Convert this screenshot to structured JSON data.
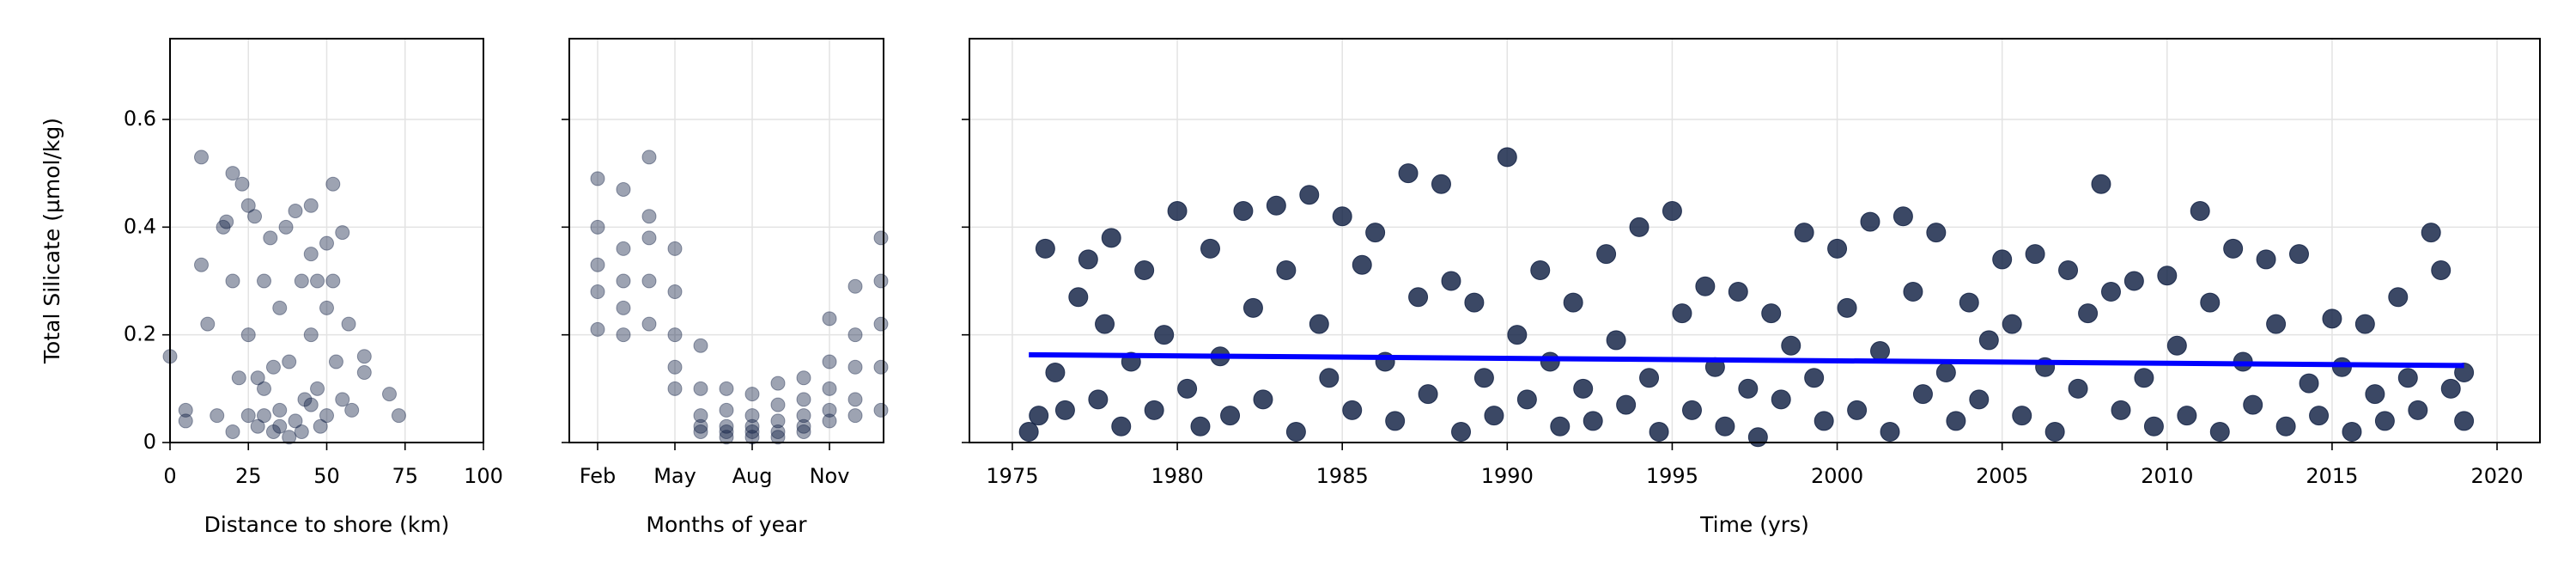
{
  "chart_data": [
    {
      "type": "scatter",
      "xlabel": "Distance to shore (km)",
      "ylabel": "Total Silicate (µmol/kg)",
      "xlim": [
        0,
        100
      ],
      "xticks": [
        0,
        25,
        50,
        75,
        100
      ],
      "ylim": [
        0,
        0.75
      ],
      "yticks": [
        0.0,
        0.2,
        0.4,
        0.6
      ],
      "grid": true,
      "series": [
        {
          "type": "scatter",
          "color": "#0a1a3f",
          "opacity": 0.4,
          "x": [
            0,
            5,
            5,
            10,
            10,
            12,
            15,
            17,
            18,
            20,
            20,
            20,
            22,
            23,
            25,
            25,
            25,
            27,
            28,
            30,
            30,
            32,
            33,
            35,
            35,
            37,
            38,
            40,
            40,
            42,
            43,
            45,
            45,
            45,
            47,
            47,
            48,
            50,
            50,
            50,
            52,
            52,
            53,
            55,
            55,
            57,
            58,
            62,
            62,
            70,
            73,
            35,
            38,
            30,
            42,
            28,
            45,
            33
          ],
          "values": [
            0.16,
            0.06,
            0.04,
            0.53,
            0.33,
            0.22,
            0.05,
            0.4,
            0.41,
            0.5,
            0.3,
            0.02,
            0.12,
            0.48,
            0.44,
            0.2,
            0.05,
            0.42,
            0.03,
            0.3,
            0.1,
            0.38,
            0.02,
            0.25,
            0.06,
            0.4,
            0.15,
            0.43,
            0.04,
            0.3,
            0.08,
            0.44,
            0.35,
            0.2,
            0.1,
            0.3,
            0.03,
            0.37,
            0.25,
            0.05,
            0.48,
            0.3,
            0.15,
            0.39,
            0.08,
            0.22,
            0.06,
            0.16,
            0.13,
            0.09,
            0.05,
            0.03,
            0.01,
            0.05,
            0.02,
            0.12,
            0.07,
            0.14
          ]
        }
      ]
    },
    {
      "type": "scatter",
      "xlabel": "Months of year",
      "xlim": [
        0.9,
        13.1
      ],
      "xticks": [
        {
          "value": 2,
          "label": "Feb"
        },
        {
          "value": 5,
          "label": "May"
        },
        {
          "value": 8,
          "label": "Aug"
        },
        {
          "value": 11,
          "label": "Nov"
        }
      ],
      "ylim": [
        0,
        0.75
      ],
      "sharey": true,
      "grid": true,
      "series": [
        {
          "type": "scatter",
          "color": "#0a1a3f",
          "opacity": 0.4,
          "x": [
            2,
            2,
            2,
            2,
            2,
            3,
            3,
            3,
            3,
            3,
            4,
            4,
            4,
            4,
            4,
            5,
            5,
            5,
            5,
            5,
            6,
            6,
            6,
            6,
            6,
            7,
            7,
            7,
            7,
            7,
            8,
            8,
            8,
            8,
            8,
            9,
            9,
            9,
            9,
            9,
            10,
            10,
            10,
            10,
            10,
            11,
            11,
            11,
            11,
            11,
            12,
            12,
            12,
            12,
            12,
            13,
            13,
            13,
            13,
            13
          ],
          "values": [
            0.49,
            0.4,
            0.33,
            0.28,
            0.21,
            0.47,
            0.36,
            0.3,
            0.25,
            0.2,
            0.53,
            0.42,
            0.38,
            0.3,
            0.22,
            0.36,
            0.28,
            0.2,
            0.14,
            0.1,
            0.18,
            0.1,
            0.05,
            0.03,
            0.02,
            0.1,
            0.06,
            0.03,
            0.02,
            0.01,
            0.09,
            0.05,
            0.03,
            0.01,
            0.02,
            0.11,
            0.07,
            0.04,
            0.02,
            0.01,
            0.12,
            0.08,
            0.05,
            0.03,
            0.02,
            0.23,
            0.15,
            0.1,
            0.06,
            0.04,
            0.29,
            0.2,
            0.14,
            0.08,
            0.05,
            0.38,
            0.3,
            0.22,
            0.14,
            0.06
          ]
        }
      ]
    },
    {
      "type": "scatter",
      "xlabel": "Time (yrs)",
      "xlim": [
        1973.7,
        2021.3
      ],
      "xticks": [
        1975,
        1980,
        1985,
        1990,
        1995,
        2000,
        2005,
        2010,
        2015,
        2020
      ],
      "ylim": [
        0,
        0.75
      ],
      "sharey": true,
      "grid": true,
      "series": [
        {
          "type": "scatter",
          "color": "#0a1a3f",
          "opacity": 0.8,
          "x": [
            1975.5,
            1975.8,
            1976,
            1976.3,
            1976.6,
            1977,
            1977.3,
            1977.6,
            1977.8,
            1978,
            1978.3,
            1978.6,
            1979,
            1979.3,
            1979.6,
            1980,
            1980.3,
            1980.7,
            1981,
            1981.3,
            1981.6,
            1982,
            1982.3,
            1982.6,
            1983,
            1983.3,
            1983.6,
            1984,
            1984.3,
            1984.6,
            1985,
            1985.3,
            1985.6,
            1986,
            1986.3,
            1986.6,
            1987,
            1987.3,
            1987.6,
            1988,
            1988.3,
            1988.6,
            1989,
            1989.3,
            1989.6,
            1990,
            1990.3,
            1990.6,
            1991,
            1991.3,
            1991.6,
            1992,
            1992.3,
            1992.6,
            1993,
            1993.3,
            1993.6,
            1994,
            1994.3,
            1994.6,
            1995,
            1995.3,
            1995.6,
            1996,
            1996.3,
            1996.6,
            1997,
            1997.3,
            1997.6,
            1998,
            1998.3,
            1998.6,
            1999,
            1999.3,
            1999.6,
            2000,
            2000.3,
            2000.6,
            2001,
            2001.3,
            2001.6,
            2002,
            2002.3,
            2002.6,
            2003,
            2003.3,
            2003.6,
            2004,
            2004.3,
            2004.6,
            2005,
            2005.3,
            2005.6,
            2006,
            2006.3,
            2006.6,
            2007,
            2007.3,
            2007.6,
            2008,
            2008.3,
            2008.6,
            2009,
            2009.3,
            2009.6,
            2010,
            2010.3,
            2010.6,
            2011,
            2011.3,
            2011.6,
            2012,
            2012.3,
            2012.6,
            2013,
            2013.3,
            2013.6,
            2014,
            2014.3,
            2014.6,
            2015,
            2015.3,
            2015.6,
            2016,
            2016.3,
            2016.6,
            2017,
            2017.3,
            2017.6,
            2018,
            2018.3,
            2018.6,
            2019,
            2019
          ],
          "values": [
            0.02,
            0.05,
            0.36,
            0.13,
            0.06,
            0.27,
            0.34,
            0.08,
            0.22,
            0.38,
            0.03,
            0.15,
            0.32,
            0.06,
            0.2,
            0.43,
            0.1,
            0.03,
            0.36,
            0.16,
            0.05,
            0.43,
            0.25,
            0.08,
            0.44,
            0.32,
            0.02,
            0.46,
            0.22,
            0.12,
            0.42,
            0.06,
            0.33,
            0.39,
            0.15,
            0.04,
            0.5,
            0.27,
            0.09,
            0.48,
            0.3,
            0.02,
            0.26,
            0.12,
            0.05,
            0.53,
            0.2,
            0.08,
            0.32,
            0.15,
            0.03,
            0.26,
            0.1,
            0.04,
            0.35,
            0.19,
            0.07,
            0.4,
            0.12,
            0.02,
            0.43,
            0.24,
            0.06,
            0.29,
            0.14,
            0.03,
            0.28,
            0.1,
            0.01,
            0.24,
            0.08,
            0.18,
            0.39,
            0.12,
            0.04,
            0.36,
            0.25,
            0.06,
            0.41,
            0.17,
            0.02,
            0.42,
            0.28,
            0.09,
            0.39,
            0.13,
            0.04,
            0.26,
            0.08,
            0.19,
            0.34,
            0.22,
            0.05,
            0.35,
            0.14,
            0.02,
            0.32,
            0.1,
            0.24,
            0.48,
            0.28,
            0.06,
            0.3,
            0.12,
            0.03,
            0.31,
            0.18,
            0.05,
            0.43,
            0.26,
            0.02,
            0.36,
            0.15,
            0.07,
            0.34,
            0.22,
            0.03,
            0.35,
            0.11,
            0.05,
            0.23,
            0.14,
            0.02,
            0.22,
            0.09,
            0.04,
            0.27,
            0.12,
            0.06,
            0.39,
            0.32,
            0.1,
            0.13,
            0.04
          ]
        },
        {
          "type": "line",
          "color": "#0000ff",
          "x": [
            1975.5,
            2019
          ],
          "values": [
            0.163,
            0.143
          ]
        }
      ]
    }
  ]
}
